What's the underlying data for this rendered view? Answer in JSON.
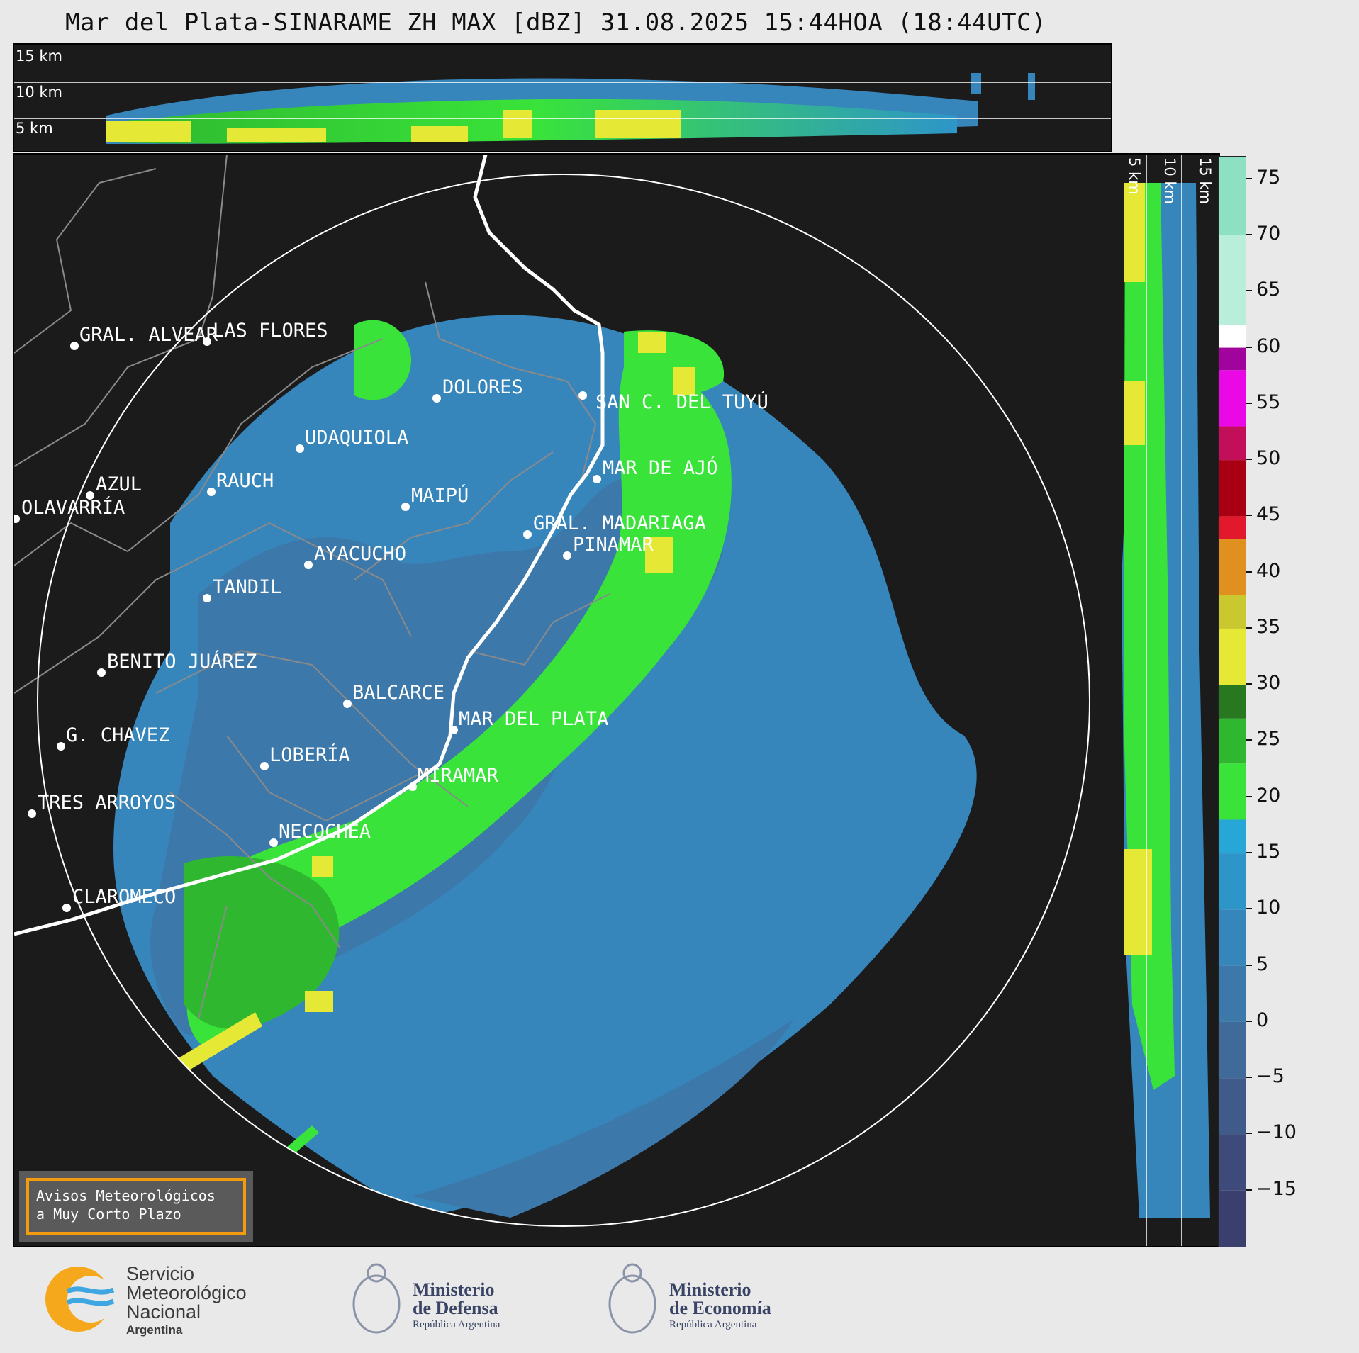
{
  "title": "Mar del Plata-SINARAME ZH MAX [dBZ] 31.08.2025 15:44HOA (18:44UTC)",
  "altitude_labels": {
    "top": [
      "15 km",
      "10 km",
      "5 km"
    ],
    "side": [
      "5 km",
      "10 km",
      "15 km"
    ]
  },
  "cities": [
    {
      "name": "GRAL. ALVEAR"
    },
    {
      "name": "LAS FLORES"
    },
    {
      "name": "DOLORES"
    },
    {
      "name": "SAN C. DEL TUYÚ"
    },
    {
      "name": "UDAQUIOLA"
    },
    {
      "name": "AZUL"
    },
    {
      "name": "RAUCH"
    },
    {
      "name": "MAR DE AJÓ"
    },
    {
      "name": "OLAVARRÍA"
    },
    {
      "name": "MAIPÚ"
    },
    {
      "name": "GRAL. MADARIAGA"
    },
    {
      "name": "PINAMAR"
    },
    {
      "name": "AYACUCHO"
    },
    {
      "name": "TANDIL"
    },
    {
      "name": "BENITO JUÁREZ"
    },
    {
      "name": "BALCARCE"
    },
    {
      "name": "MAR DEL PLATA"
    },
    {
      "name": "G. CHAVEZ"
    },
    {
      "name": "LOBERÍA"
    },
    {
      "name": "MIRAMAR"
    },
    {
      "name": "TRES ARROYOS"
    },
    {
      "name": "NECOCHEA"
    },
    {
      "name": "CLAROMECO"
    }
  ],
  "colorbar": {
    "unit": "dBZ",
    "min": -20,
    "max": 77,
    "ticks": [
      "75",
      "70",
      "65",
      "60",
      "55",
      "50",
      "45",
      "40",
      "35",
      "30",
      "25",
      "20",
      "15",
      "10",
      "5",
      "0",
      "−5",
      "−10",
      "−15"
    ],
    "tick_values": [
      75,
      70,
      65,
      60,
      55,
      50,
      45,
      40,
      35,
      30,
      25,
      20,
      15,
      10,
      5,
      0,
      -5,
      -10,
      -15
    ],
    "stops": [
      {
        "from": -20,
        "to": -15,
        "color": "#3b3f6e"
      },
      {
        "from": -15,
        "to": -10,
        "color": "#3e4a7a"
      },
      {
        "from": -10,
        "to": -5,
        "color": "#405a8a"
      },
      {
        "from": -5,
        "to": 0,
        "color": "#3f6a9a"
      },
      {
        "from": 0,
        "to": 5,
        "color": "#3c78aa"
      },
      {
        "from": 5,
        "to": 10,
        "color": "#3786bb"
      },
      {
        "from": 10,
        "to": 15,
        "color": "#2e95c9"
      },
      {
        "from": 15,
        "to": 18,
        "color": "#27a6d8"
      },
      {
        "from": 18,
        "to": 23,
        "color": "#39e33a"
      },
      {
        "from": 23,
        "to": 27,
        "color": "#2fb82f"
      },
      {
        "from": 27,
        "to": 30,
        "color": "#27781e"
      },
      {
        "from": 30,
        "to": 35,
        "color": "#e6e836"
      },
      {
        "from": 35,
        "to": 38,
        "color": "#c9c82e"
      },
      {
        "from": 38,
        "to": 43,
        "color": "#e0901e"
      },
      {
        "from": 43,
        "to": 45,
        "color": "#e2182c"
      },
      {
        "from": 45,
        "to": 50,
        "color": "#a80012"
      },
      {
        "from": 50,
        "to": 53,
        "color": "#c30e5a"
      },
      {
        "from": 53,
        "to": 58,
        "color": "#ea08e6"
      },
      {
        "from": 58,
        "to": 60,
        "color": "#a0049c"
      },
      {
        "from": 60,
        "to": 62,
        "color": "#ffffff"
      },
      {
        "from": 62,
        "to": 70,
        "color": "#b9eedb"
      },
      {
        "from": 70,
        "to": 77,
        "color": "#8de0c2"
      }
    ]
  },
  "warning_box": {
    "text": "Avisos Meteorológicos\na Muy Corto Plazo",
    "border_color": "#f39c12"
  },
  "logos": {
    "smn": {
      "line1": "Servicio",
      "line2": "Meteorológico",
      "line3": "Nacional",
      "line4": "Argentina"
    },
    "defensa": {
      "line1": "Ministerio",
      "line2": "de Defensa",
      "line3": "República Argentina"
    },
    "economia": {
      "line1": "Ministerio",
      "line2": "de Economía",
      "line3": "República Argentina"
    }
  },
  "colors": {
    "background": "#1b1b1b",
    "page": "#e9e9e9",
    "range_ring": "#ffffff",
    "borders": "#8a8a8a",
    "coast": "#ffffff"
  }
}
